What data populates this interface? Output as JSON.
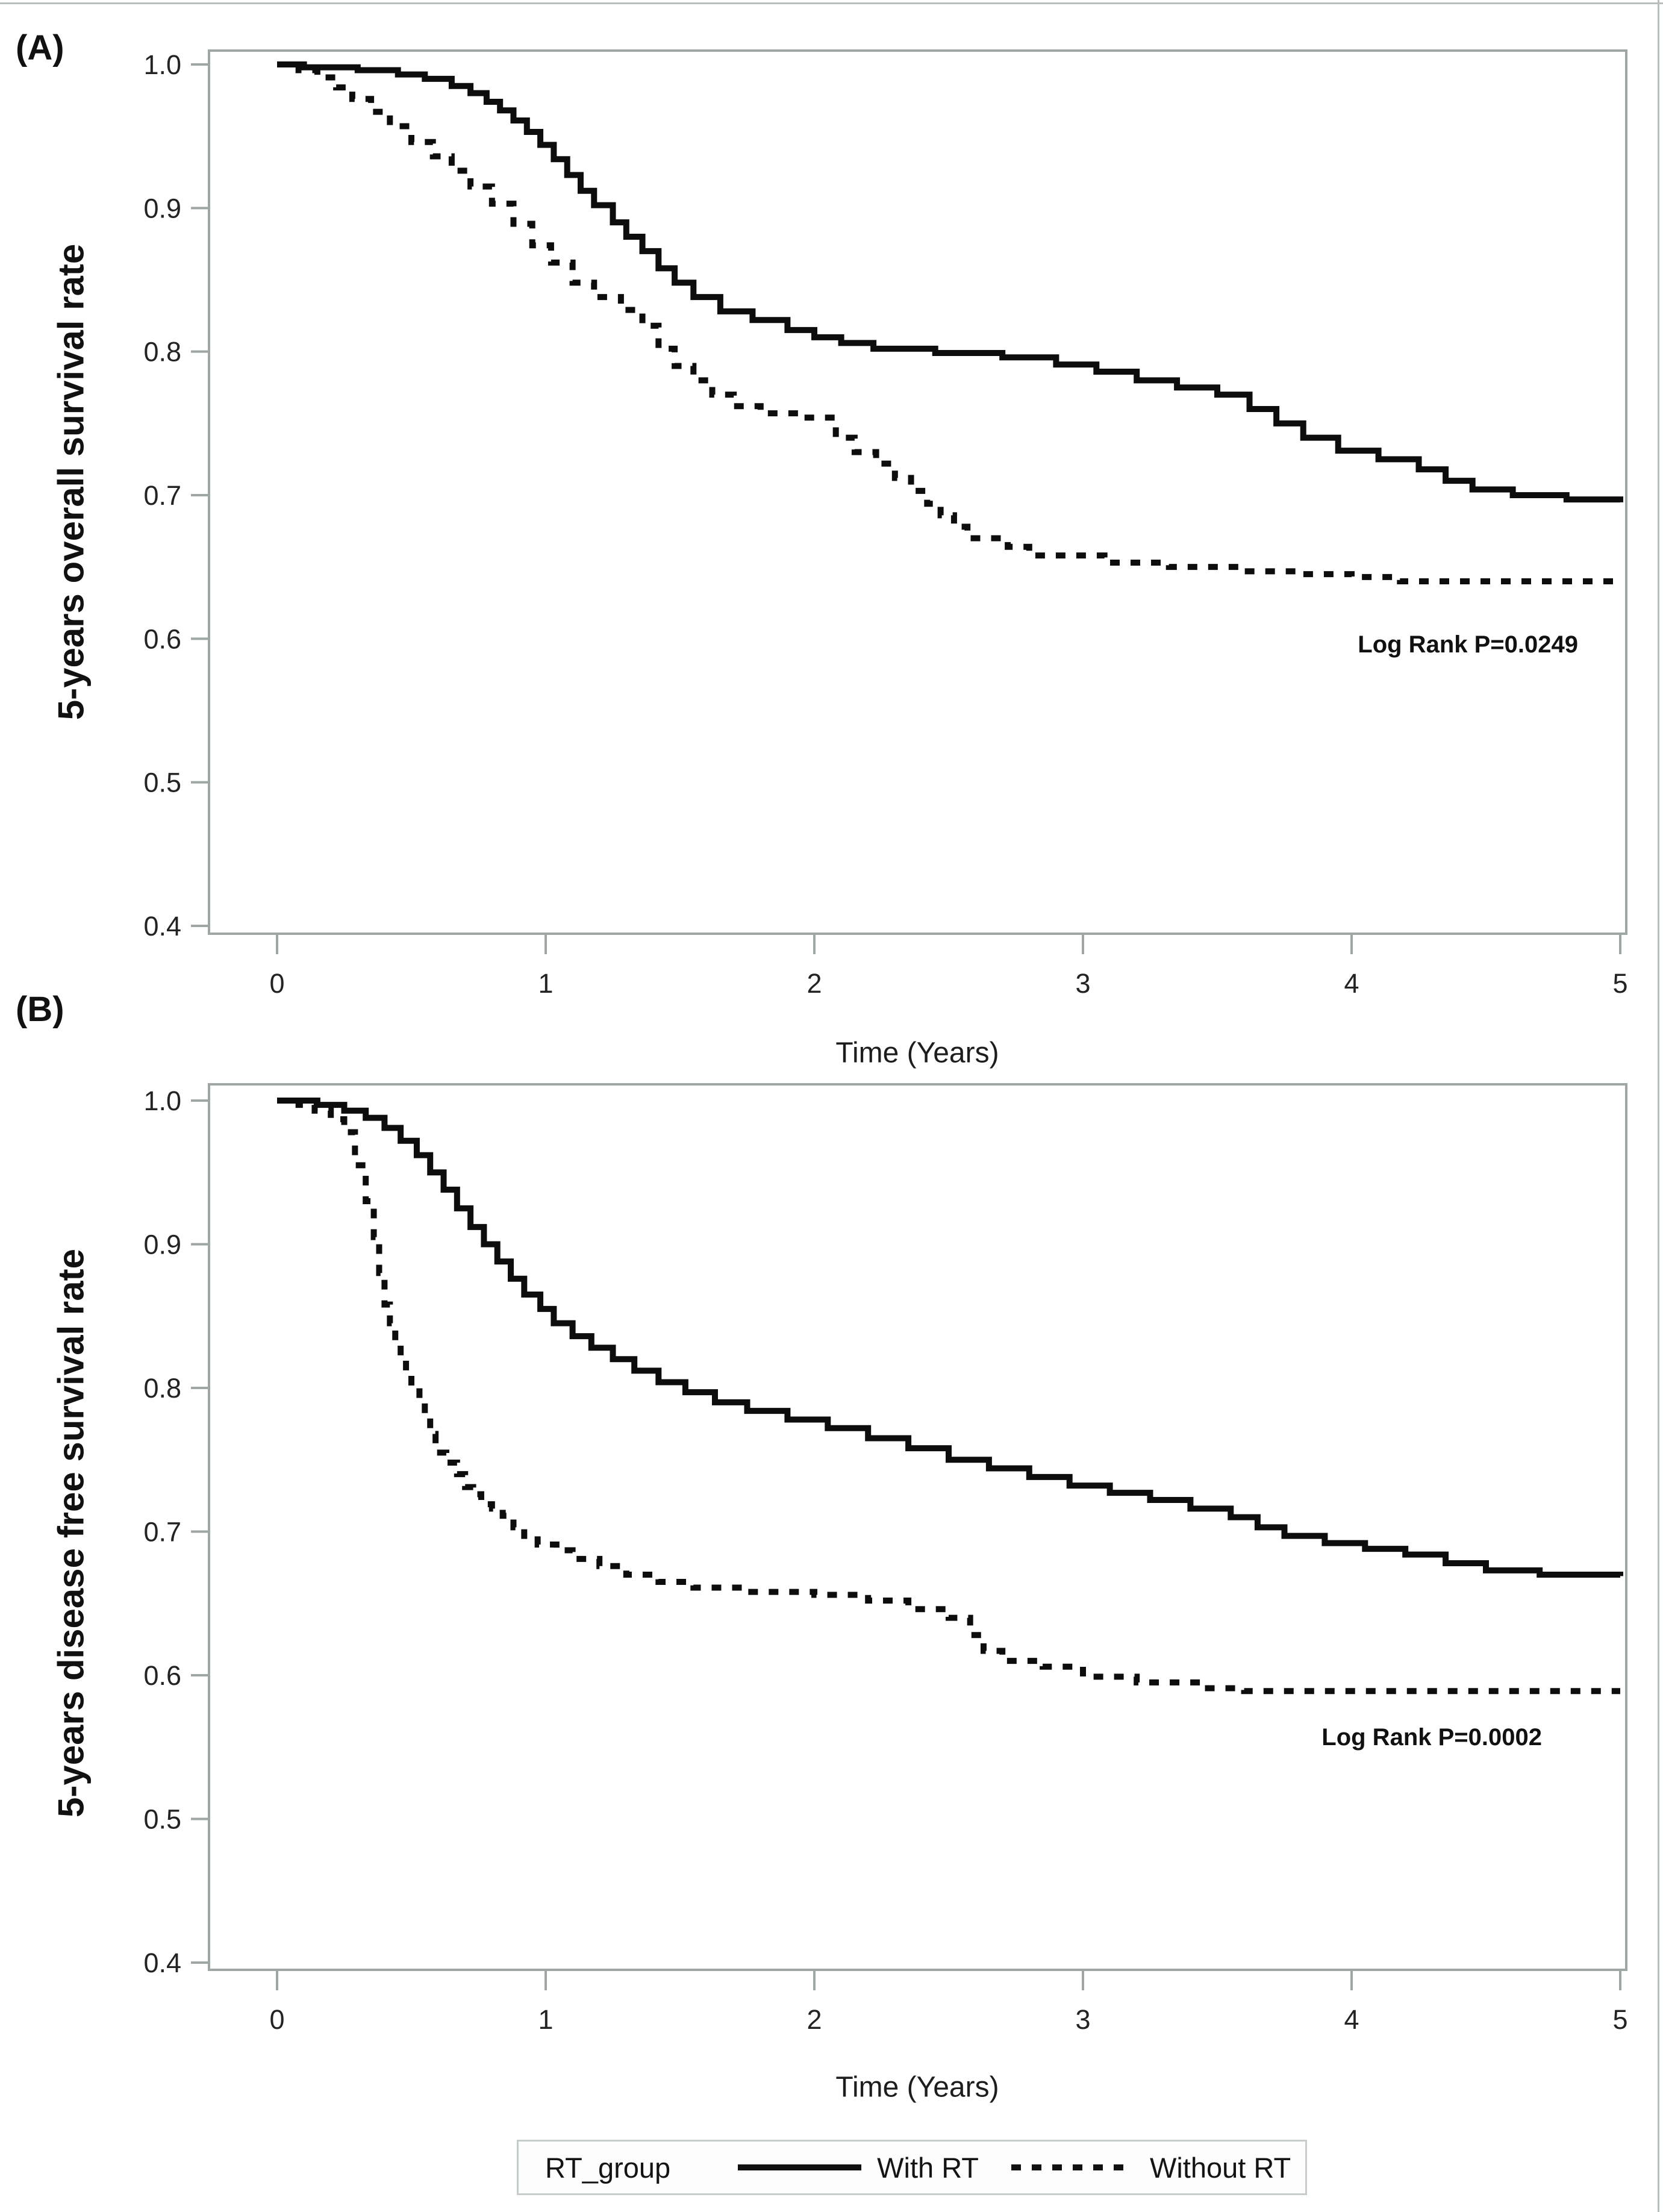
{
  "figure": {
    "panel_a_tag": "(A)",
    "panel_b_tag": "(B)",
    "background": "#ffffff"
  },
  "legend": {
    "title": "RT_group",
    "with_rt_label": "With RT",
    "without_rt_label": "Without RT"
  },
  "colors": {
    "curve": "#0d0d0d",
    "axis_frame": "#9ea6a6",
    "tick_text": "#232323",
    "legend_border": "#c6cbcb"
  },
  "chart_data": [
    {
      "type": "line",
      "panel": "A",
      "subtype": "kaplan-meier-step",
      "ylabel": "5-years overall survival rate",
      "xlabel": "Time (Years)",
      "annotation": "Log Rank P=0.0249",
      "xlim": [
        0,
        5
      ],
      "ylim": [
        0.4,
        1.0
      ],
      "xticks": [
        0,
        1,
        2,
        3,
        4,
        5
      ],
      "yticks": [
        1.0,
        0.9,
        0.8,
        0.7,
        0.6,
        0.5,
        0.4
      ],
      "grid": false,
      "legend_position": "bottom-shared",
      "series": [
        {
          "name": "With RT",
          "style": "solid",
          "points": [
            [
              0,
              1.0
            ],
            [
              0.1,
              0.998
            ],
            [
              0.3,
              0.996
            ],
            [
              0.45,
              0.993
            ],
            [
              0.55,
              0.99
            ],
            [
              0.65,
              0.985
            ],
            [
              0.72,
              0.98
            ],
            [
              0.78,
              0.974
            ],
            [
              0.83,
              0.968
            ],
            [
              0.88,
              0.961
            ],
            [
              0.93,
              0.953
            ],
            [
              0.98,
              0.944
            ],
            [
              1.03,
              0.934
            ],
            [
              1.08,
              0.923
            ],
            [
              1.13,
              0.912
            ],
            [
              1.18,
              0.902
            ],
            [
              1.25,
              0.89
            ],
            [
              1.3,
              0.88
            ],
            [
              1.36,
              0.87
            ],
            [
              1.42,
              0.858
            ],
            [
              1.48,
              0.848
            ],
            [
              1.55,
              0.838
            ],
            [
              1.65,
              0.828
            ],
            [
              1.77,
              0.822
            ],
            [
              1.9,
              0.815
            ],
            [
              2.0,
              0.81
            ],
            [
              2.1,
              0.806
            ],
            [
              2.22,
              0.802
            ],
            [
              2.45,
              0.799
            ],
            [
              2.7,
              0.796
            ],
            [
              2.9,
              0.791
            ],
            [
              3.05,
              0.786
            ],
            [
              3.2,
              0.78
            ],
            [
              3.35,
              0.775
            ],
            [
              3.5,
              0.77
            ],
            [
              3.62,
              0.76
            ],
            [
              3.72,
              0.75
            ],
            [
              3.82,
              0.74
            ],
            [
              3.95,
              0.731
            ],
            [
              4.1,
              0.725
            ],
            [
              4.25,
              0.718
            ],
            [
              4.35,
              0.71
            ],
            [
              4.45,
              0.704
            ],
            [
              4.6,
              0.7
            ],
            [
              4.8,
              0.697
            ],
            [
              5.0,
              0.695
            ]
          ]
        },
        {
          "name": "Without RT",
          "style": "dashed",
          "points": [
            [
              0,
              1.0
            ],
            [
              0.08,
              0.996
            ],
            [
              0.15,
              0.991
            ],
            [
              0.22,
              0.984
            ],
            [
              0.28,
              0.976
            ],
            [
              0.35,
              0.967
            ],
            [
              0.42,
              0.957
            ],
            [
              0.5,
              0.946
            ],
            [
              0.58,
              0.936
            ],
            [
              0.65,
              0.926
            ],
            [
              0.72,
              0.915
            ],
            [
              0.8,
              0.903
            ],
            [
              0.88,
              0.889
            ],
            [
              0.95,
              0.874
            ],
            [
              1.02,
              0.862
            ],
            [
              1.1,
              0.848
            ],
            [
              1.18,
              0.838
            ],
            [
              1.28,
              0.829
            ],
            [
              1.36,
              0.818
            ],
            [
              1.42,
              0.802
            ],
            [
              1.48,
              0.79
            ],
            [
              1.55,
              0.78
            ],
            [
              1.62,
              0.77
            ],
            [
              1.7,
              0.762
            ],
            [
              1.8,
              0.757
            ],
            [
              1.95,
              0.754
            ],
            [
              2.08,
              0.74
            ],
            [
              2.15,
              0.73
            ],
            [
              2.23,
              0.722
            ],
            [
              2.3,
              0.712
            ],
            [
              2.36,
              0.703
            ],
            [
              2.42,
              0.694
            ],
            [
              2.47,
              0.686
            ],
            [
              2.52,
              0.678
            ],
            [
              2.57,
              0.67
            ],
            [
              2.72,
              0.664
            ],
            [
              2.8,
              0.658
            ],
            [
              3.08,
              0.653
            ],
            [
              3.32,
              0.65
            ],
            [
              3.6,
              0.647
            ],
            [
              3.8,
              0.645
            ],
            [
              4.0,
              0.643
            ],
            [
              4.18,
              0.64
            ],
            [
              5.0,
              0.64
            ]
          ]
        }
      ]
    },
    {
      "type": "line",
      "panel": "B",
      "subtype": "kaplan-meier-step",
      "ylabel": "5-years disease free survival rate",
      "xlabel": "Time (Years)",
      "annotation": "Log Rank P=0.0002",
      "xlim": [
        0,
        5
      ],
      "ylim": [
        0.4,
        1.0
      ],
      "xticks": [
        0,
        1,
        2,
        3,
        4,
        5
      ],
      "yticks": [
        1.0,
        0.9,
        0.8,
        0.7,
        0.6,
        0.5,
        0.4
      ],
      "grid": false,
      "legend_position": "bottom-shared",
      "series": [
        {
          "name": "With RT",
          "style": "solid",
          "points": [
            [
              0,
              1.0
            ],
            [
              0.15,
              0.997
            ],
            [
              0.25,
              0.993
            ],
            [
              0.33,
              0.988
            ],
            [
              0.4,
              0.981
            ],
            [
              0.46,
              0.972
            ],
            [
              0.52,
              0.962
            ],
            [
              0.57,
              0.95
            ],
            [
              0.62,
              0.938
            ],
            [
              0.67,
              0.925
            ],
            [
              0.72,
              0.912
            ],
            [
              0.77,
              0.9
            ],
            [
              0.82,
              0.888
            ],
            [
              0.87,
              0.876
            ],
            [
              0.92,
              0.865
            ],
            [
              0.98,
              0.855
            ],
            [
              1.03,
              0.845
            ],
            [
              1.1,
              0.836
            ],
            [
              1.17,
              0.828
            ],
            [
              1.25,
              0.82
            ],
            [
              1.33,
              0.812
            ],
            [
              1.42,
              0.804
            ],
            [
              1.52,
              0.797
            ],
            [
              1.63,
              0.79
            ],
            [
              1.75,
              0.784
            ],
            [
              1.9,
              0.778
            ],
            [
              2.05,
              0.772
            ],
            [
              2.2,
              0.765
            ],
            [
              2.35,
              0.758
            ],
            [
              2.5,
              0.75
            ],
            [
              2.65,
              0.744
            ],
            [
              2.8,
              0.738
            ],
            [
              2.95,
              0.732
            ],
            [
              3.1,
              0.727
            ],
            [
              3.25,
              0.722
            ],
            [
              3.4,
              0.716
            ],
            [
              3.55,
              0.71
            ],
            [
              3.65,
              0.703
            ],
            [
              3.75,
              0.697
            ],
            [
              3.9,
              0.692
            ],
            [
              4.05,
              0.688
            ],
            [
              4.2,
              0.684
            ],
            [
              4.35,
              0.678
            ],
            [
              4.5,
              0.673
            ],
            [
              4.7,
              0.67
            ],
            [
              5.0,
              0.669
            ]
          ]
        },
        {
          "name": "Without RT",
          "style": "dashed",
          "points": [
            [
              0,
              1.0
            ],
            [
              0.08,
              0.997
            ],
            [
              0.14,
              0.993
            ],
            [
              0.2,
              0.987
            ],
            [
              0.25,
              0.978
            ],
            [
              0.29,
              0.955
            ],
            [
              0.33,
              0.93
            ],
            [
              0.36,
              0.905
            ],
            [
              0.38,
              0.88
            ],
            [
              0.4,
              0.858
            ],
            [
              0.42,
              0.845
            ],
            [
              0.44,
              0.832
            ],
            [
              0.46,
              0.82
            ],
            [
              0.48,
              0.81
            ],
            [
              0.5,
              0.8
            ],
            [
              0.53,
              0.79
            ],
            [
              0.55,
              0.78
            ],
            [
              0.57,
              0.768
            ],
            [
              0.59,
              0.755
            ],
            [
              0.63,
              0.748
            ],
            [
              0.67,
              0.74
            ],
            [
              0.7,
              0.731
            ],
            [
              0.73,
              0.726
            ],
            [
              0.76,
              0.719
            ],
            [
              0.8,
              0.716
            ],
            [
              0.84,
              0.711
            ],
            [
              0.88,
              0.703
            ],
            [
              0.92,
              0.697
            ],
            [
              0.97,
              0.691
            ],
            [
              1.04,
              0.687
            ],
            [
              1.1,
              0.681
            ],
            [
              1.2,
              0.676
            ],
            [
              1.3,
              0.67
            ],
            [
              1.42,
              0.665
            ],
            [
              1.55,
              0.661
            ],
            [
              1.75,
              0.658
            ],
            [
              2.0,
              0.656
            ],
            [
              2.2,
              0.652
            ],
            [
              2.35,
              0.646
            ],
            [
              2.5,
              0.64
            ],
            [
              2.58,
              0.628
            ],
            [
              2.63,
              0.617
            ],
            [
              2.7,
              0.61
            ],
            [
              2.85,
              0.606
            ],
            [
              3.0,
              0.599
            ],
            [
              3.2,
              0.595
            ],
            [
              3.45,
              0.591
            ],
            [
              3.6,
              0.589
            ],
            [
              5.0,
              0.589
            ]
          ]
        }
      ]
    }
  ]
}
